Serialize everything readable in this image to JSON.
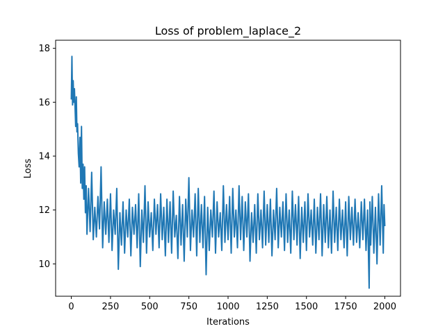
{
  "chart_data": {
    "type": "line",
    "title": "Loss of problem_laplace_2",
    "xlabel": "Iterations",
    "ylabel": "Loss",
    "xlim": [
      -100,
      2100
    ],
    "ylim": [
      8.8,
      18.3
    ],
    "xticks": [
      0,
      250,
      500,
      750,
      1000,
      1250,
      1500,
      1750,
      2000
    ],
    "xtick_labels": [
      "0",
      "250",
      "500",
      "750",
      "1000",
      "1250",
      "1500",
      "1750",
      "2000"
    ],
    "yticks": [
      10,
      12,
      14,
      16,
      18
    ],
    "ytick_labels": [
      "10",
      "12",
      "14",
      "16",
      "18"
    ],
    "grid": false,
    "legend": "none",
    "series": [
      {
        "color": "#1f77b4",
        "x": [
          0,
          4,
          8,
          12,
          16,
          20,
          24,
          28,
          32,
          36,
          40,
          45,
          50,
          55,
          60,
          65,
          70,
          75,
          80,
          85,
          90,
          95,
          100,
          110,
          120,
          130,
          140,
          150,
          160,
          170,
          180,
          190,
          200,
          210,
          220,
          230,
          240,
          250,
          260,
          270,
          280,
          290,
          300,
          310,
          320,
          330,
          340,
          350,
          360,
          370,
          380,
          390,
          400,
          410,
          420,
          430,
          440,
          450,
          460,
          470,
          480,
          490,
          500,
          510,
          520,
          530,
          540,
          550,
          560,
          570,
          580,
          590,
          600,
          610,
          620,
          630,
          640,
          650,
          660,
          670,
          680,
          690,
          700,
          710,
          720,
          730,
          740,
          750,
          760,
          770,
          780,
          790,
          800,
          810,
          820,
          830,
          840,
          850,
          860,
          870,
          880,
          890,
          900,
          910,
          920,
          930,
          940,
          950,
          960,
          970,
          980,
          990,
          1000,
          1010,
          1020,
          1030,
          1040,
          1050,
          1060,
          1070,
          1080,
          1090,
          1100,
          1110,
          1120,
          1130,
          1140,
          1150,
          1160,
          1170,
          1180,
          1190,
          1200,
          1210,
          1220,
          1230,
          1240,
          1250,
          1260,
          1270,
          1280,
          1290,
          1300,
          1310,
          1320,
          1330,
          1340,
          1350,
          1360,
          1370,
          1380,
          1390,
          1400,
          1410,
          1420,
          1430,
          1440,
          1450,
          1460,
          1470,
          1480,
          1490,
          1500,
          1510,
          1520,
          1530,
          1540,
          1550,
          1560,
          1570,
          1580,
          1590,
          1600,
          1610,
          1620,
          1630,
          1640,
          1650,
          1660,
          1670,
          1680,
          1690,
          1700,
          1710,
          1720,
          1730,
          1740,
          1750,
          1760,
          1770,
          1780,
          1790,
          1800,
          1810,
          1820,
          1830,
          1840,
          1850,
          1860,
          1870,
          1880,
          1890,
          1900,
          1905,
          1910,
          1920,
          1930,
          1940,
          1950,
          1960,
          1970,
          1980,
          1990,
          1995,
          2000
        ],
        "y": [
          16.1,
          17.7,
          15.9,
          16.8,
          16.0,
          16.5,
          15.8,
          15.1,
          16.2,
          14.9,
          15.2,
          14.1,
          13.6,
          14.7,
          13.0,
          15.1,
          12.8,
          13.7,
          12.4,
          13.6,
          11.9,
          12.9,
          11.1,
          12.8,
          11.2,
          13.4,
          10.9,
          12.1,
          11.0,
          12.5,
          11.3,
          13.6,
          10.6,
          12.3,
          11.1,
          12.4,
          10.8,
          12.6,
          10.5,
          12.0,
          11.1,
          12.8,
          9.8,
          11.9,
          10.7,
          12.3,
          10.4,
          12.0,
          11.0,
          12.4,
          10.3,
          12.1,
          11.1,
          12.2,
          10.6,
          12.6,
          9.9,
          12.0,
          10.8,
          12.9,
          10.4,
          12.3,
          11.0,
          11.9,
          10.5,
          12.4,
          11.1,
          12.2,
          10.6,
          12.6,
          10.9,
          12.1,
          10.3,
          12.4,
          10.8,
          12.3,
          10.4,
          12.7,
          11.0,
          11.8,
          10.2,
          12.5,
          10.7,
          12.2,
          10.1,
          12.4,
          11.0,
          13.2,
          10.5,
          12.0,
          11.0,
          12.6,
          10.3,
          12.8,
          10.8,
          12.2,
          10.6,
          12.5,
          9.6,
          12.1,
          10.5,
          12.0,
          11.0,
          12.7,
          10.4,
          12.3,
          11.0,
          11.9,
          10.5,
          12.9,
          10.8,
          12.2,
          10.9,
          12.5,
          10.4,
          12.8,
          11.0,
          12.0,
          10.6,
          12.9,
          10.9,
          12.5,
          10.5,
          12.3,
          11.0,
          12.6,
          10.1,
          11.9,
          10.8,
          12.2,
          10.4,
          12.6,
          10.9,
          12.0,
          10.6,
          12.7,
          10.7,
          12.2,
          10.8,
          12.4,
          10.3,
          12.0,
          10.9,
          12.8,
          10.6,
          12.1,
          11.0,
          12.3,
          10.5,
          12.6,
          10.8,
          12.0,
          10.4,
          12.7,
          10.9,
          12.2,
          10.7,
          12.5,
          10.2,
          12.1,
          10.8,
          12.3,
          10.5,
          12.6,
          11.0,
          12.0,
          10.7,
          12.4,
          10.4,
          12.1,
          10.9,
          12.6,
          10.3,
          12.2,
          10.8,
          12.5,
          10.6,
          12.0,
          10.4,
          12.7,
          10.8,
          12.1,
          10.5,
          12.4,
          10.9,
          12.0,
          10.6,
          12.3,
          10.3,
          12.5,
          10.9,
          12.1,
          10.7,
          12.4,
          10.8,
          11.9,
          10.6,
          12.3,
          10.9,
          12.4,
          10.5,
          12.0,
          9.1,
          12.3,
          10.7,
          12.5,
          10.4,
          12.1,
          10.0,
          12.6,
          10.7,
          12.9,
          10.4,
          12.2,
          11.4
        ]
      }
    ]
  }
}
